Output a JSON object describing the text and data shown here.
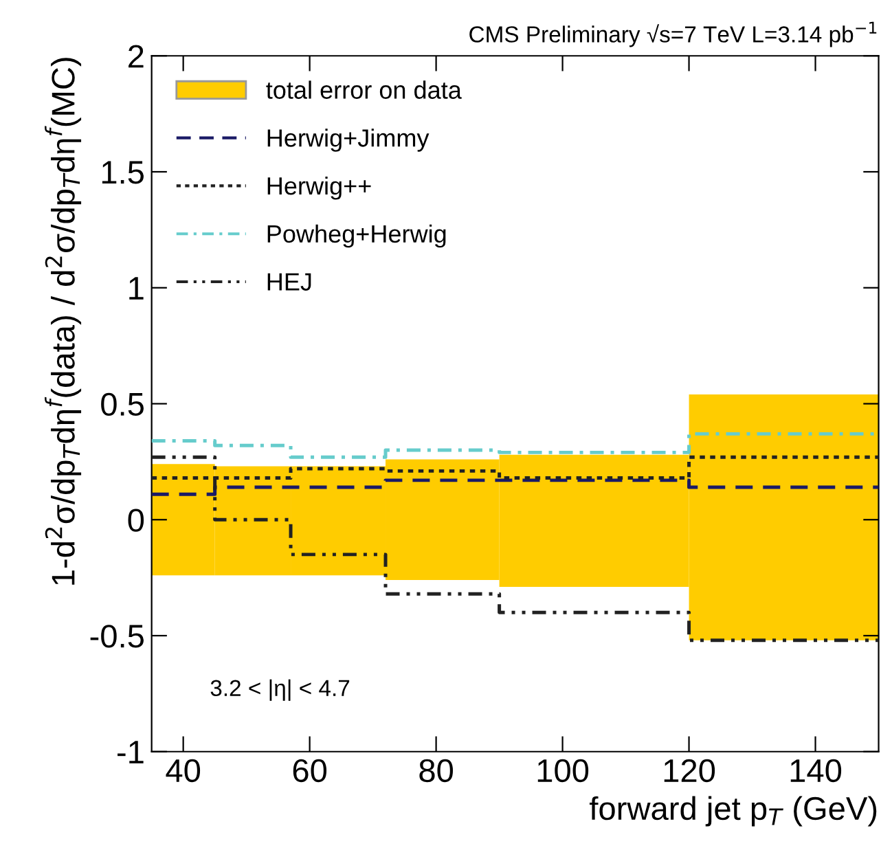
{
  "chart_data": {
    "type": "step",
    "title": "CMS Preliminary √s=7 TeV L=3.14 pb$^{−1}$",
    "xlabel": "forward jet p$_{T}$ (GeV)",
    "ylabel": "1-d$^{2}$σ/dp$_{T}$dη$^{f}$(data) / d$^{2}$σ/dp$_{T}$dη$^{f}$(MC)",
    "annotations": [
      "3.2 < |η| < 4.7"
    ],
    "xlim": [
      35,
      150
    ],
    "xticks": [
      40,
      60,
      80,
      100,
      120,
      140
    ],
    "ylim": [
      -1,
      2
    ],
    "yticks": [
      -1,
      {
        "value": -0.5,
        "label": "-0.5"
      },
      0,
      0.5,
      1,
      1.5,
      2
    ],
    "legend": "top left",
    "grid": false,
    "series": [
      {
        "name": "total error on data",
        "type": "histogram",
        "color": "#ffcc00",
        "bins": [
          35,
          45,
          57,
          72,
          90,
          120,
          150
        ],
        "base": [
          -0.24,
          -0.24,
          -0.24,
          -0.26,
          -0.29,
          -0.52
        ],
        "values": [
          0.48,
          0.47,
          0.47,
          0.52,
          0.57,
          1.06
        ]
      },
      {
        "name": "Herwig+Jimmy",
        "color": "#1a1a66",
        "line_style": "dashed",
        "x": [
          35,
          45,
          57,
          72,
          90,
          120,
          150
        ],
        "values": [
          0.11,
          0.14,
          0.14,
          0.17,
          0.17,
          0.14,
          0.14
        ]
      },
      {
        "name": "Herwig++",
        "color": "#222222",
        "line_style": "dotted",
        "x": [
          35,
          45,
          57,
          72,
          90,
          120,
          150
        ],
        "values": [
          0.18,
          0.18,
          0.22,
          0.21,
          0.18,
          0.27,
          0.27
        ]
      },
      {
        "name": "Powheg+Herwig",
        "color": "#66cccc",
        "line_style": "dashdot",
        "x": [
          35,
          45,
          57,
          72,
          90,
          120,
          150
        ],
        "values": [
          0.34,
          0.32,
          0.27,
          0.3,
          0.29,
          0.37,
          0.37
        ]
      },
      {
        "name": "HEJ",
        "color": "#222222",
        "line_style": "dashdotdot",
        "x": [
          35,
          45,
          57,
          72,
          90,
          120,
          150
        ],
        "values": [
          0.27,
          0.0,
          -0.15,
          -0.32,
          -0.4,
          -0.52,
          -0.52
        ]
      }
    ]
  }
}
